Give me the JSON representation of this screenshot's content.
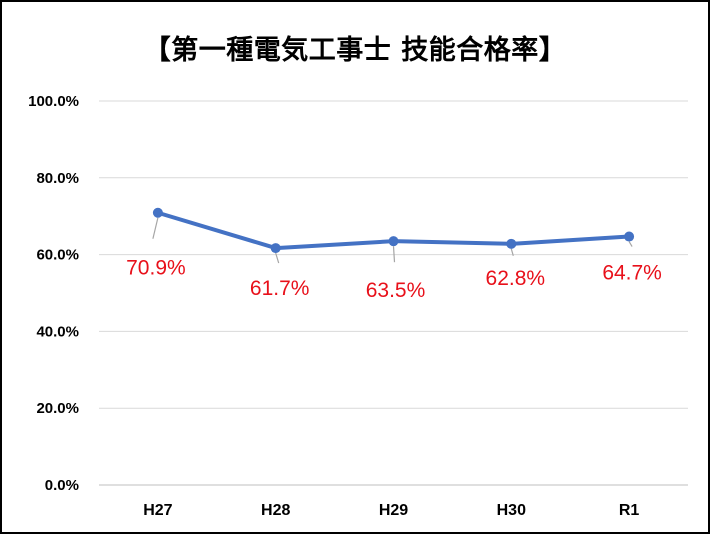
{
  "chart_data": {
    "type": "line",
    "title": "【第一種電気工事士 技能合格率】",
    "categories": [
      "H27",
      "H28",
      "H29",
      "H30",
      "R1"
    ],
    "series": [
      {
        "values": [
          70.9,
          61.7,
          63.5,
          62.8,
          64.7
        ],
        "data_labels": [
          "70.9%",
          "61.7%",
          "63.5%",
          "62.8%",
          "64.7%"
        ]
      }
    ],
    "ylim": [
      0,
      100
    ],
    "y_ticks": [
      "0.0%",
      "20.0%",
      "40.0%",
      "60.0%",
      "80.0%",
      "100.0%"
    ],
    "grid": true,
    "legend": "none",
    "colors": {
      "line": "#4472c4",
      "data_label": "#e8101a",
      "gridline": "#d9d9d9",
      "leader": "#a6a6a6"
    }
  }
}
